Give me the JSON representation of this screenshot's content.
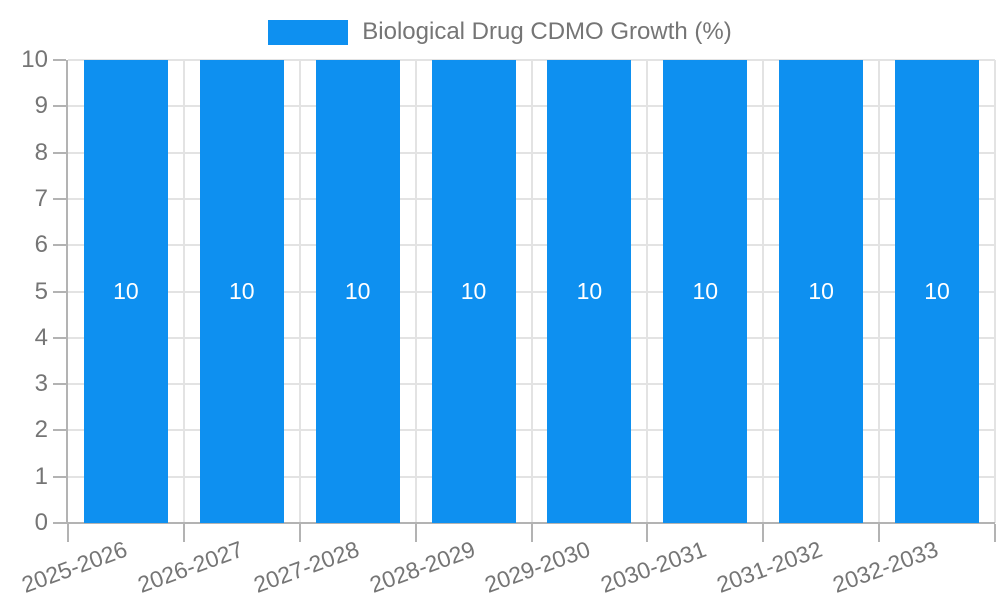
{
  "legend": {
    "label": "Biological Drug CDMO Growth (%)"
  },
  "chart_data": {
    "type": "bar",
    "title": "Biological Drug CDMO Growth (%)",
    "categories": [
      "2025-2026",
      "2026-2027",
      "2027-2028",
      "2028-2029",
      "2029-2030",
      "2030-2031",
      "2031-2032",
      "2032-2033"
    ],
    "series": [
      {
        "name": "Biological Drug CDMO Growth (%)",
        "values": [
          10,
          10,
          10,
          10,
          10,
          10,
          10,
          10
        ],
        "value_labels": [
          "10",
          "10",
          "10",
          "10",
          "10",
          "10",
          "10",
          "10"
        ]
      }
    ],
    "xlabel": "",
    "ylabel": "",
    "ylim": [
      0,
      10
    ],
    "yticks": [
      0,
      1,
      2,
      3,
      4,
      5,
      6,
      7,
      8,
      9,
      10
    ],
    "grid": true,
    "legend_position": "top",
    "x_label_rotation_deg": -20,
    "colors": {
      "bar": "#0e90f0",
      "bar_label": "#ffffff",
      "axis_line": "#b3b3b3",
      "tick_line": "#b3b3b3",
      "grid_line": "#e3e3e3",
      "axis_text": "#757575",
      "background": "#ffffff"
    }
  }
}
